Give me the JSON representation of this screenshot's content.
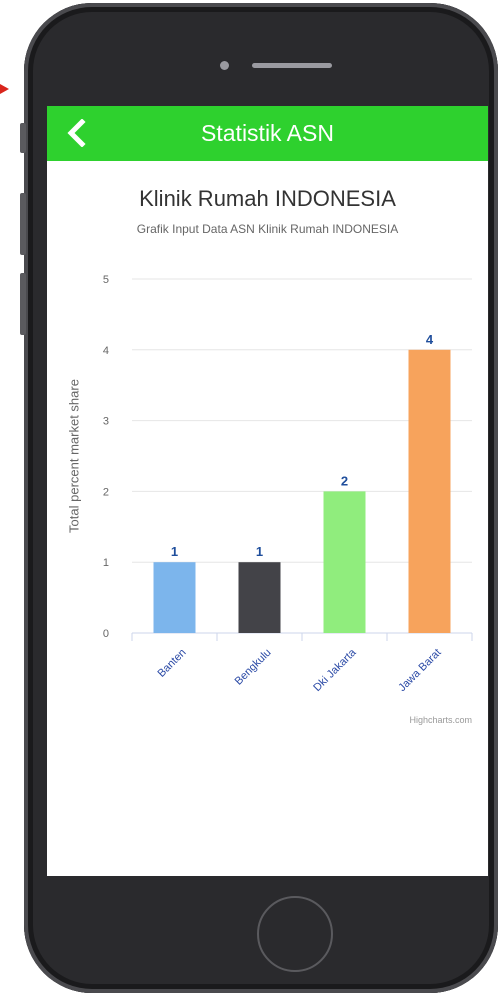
{
  "appbar": {
    "title": "Statistik ASN",
    "back_icon": "chevron-left-icon",
    "color": "#2ed12e"
  },
  "chart_data": {
    "type": "bar",
    "title": "Klinik Rumah INDONESIA",
    "subtitle": "Grafik Input Data ASN Klinik Rumah INDONESIA",
    "ylabel": "Total percent market share",
    "xlabel": "",
    "categories": [
      "Banten",
      "Bengkulu",
      "Dki Jakarta",
      "Jawa Barat"
    ],
    "values": [
      1,
      1,
      2,
      4
    ],
    "colors": [
      "#7cb5ec",
      "#434348",
      "#90ed7d",
      "#f7a35c"
    ],
    "ylim": [
      0,
      5
    ],
    "yticks": [
      0,
      1,
      2,
      3,
      4,
      5
    ],
    "grid": true,
    "legend": "none"
  },
  "credits": "Highcharts.com"
}
